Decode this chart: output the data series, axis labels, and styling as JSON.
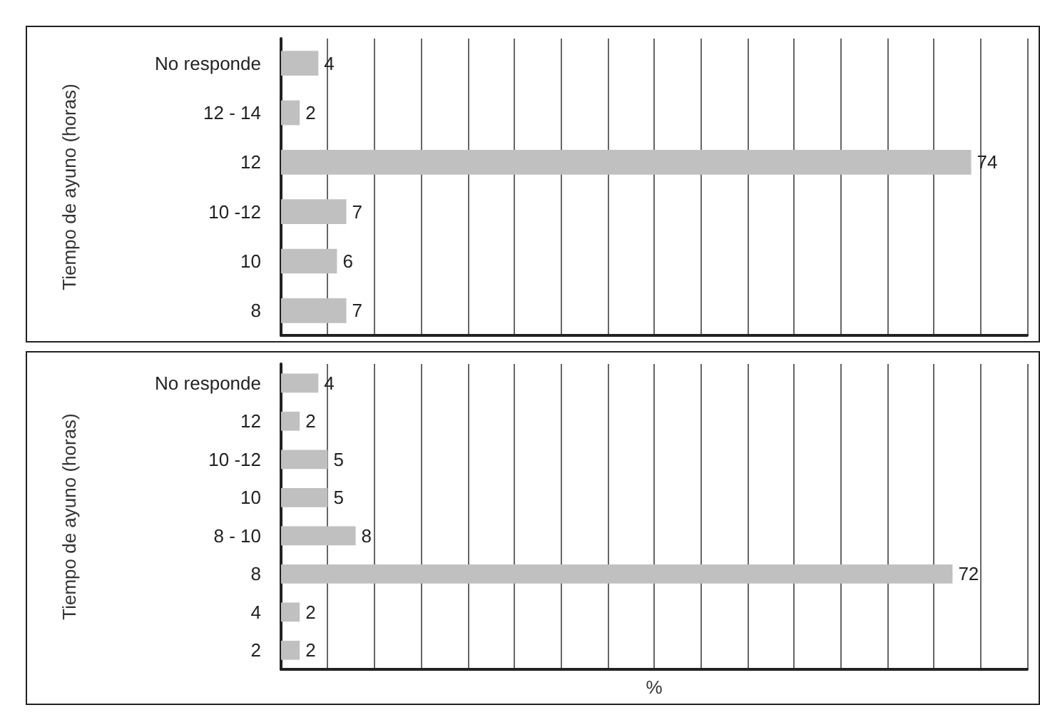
{
  "chart_data": [
    {
      "type": "bar",
      "orientation": "horizontal",
      "ylabel": "Tiempo de ayuno (horas)",
      "categories": [
        "No responde",
        "12 - 14",
        "12",
        "10 -12",
        "10",
        "8"
      ],
      "series": [
        {
          "color": "#c0c0c0",
          "values": [
            4,
            2,
            74,
            7,
            6,
            7
          ]
        }
      ],
      "xlim": [
        0,
        80
      ],
      "xticks": [
        {
          "value": 0,
          "label": null
        },
        {
          "value": 5,
          "label": null
        },
        {
          "value": 10,
          "label": null
        },
        {
          "value": 15,
          "label": null
        },
        {
          "value": 20,
          "label": null
        },
        {
          "value": 25,
          "label": null
        },
        {
          "value": 30,
          "label": null
        },
        {
          "value": 35,
          "label": null
        },
        {
          "value": 40,
          "label": null
        },
        {
          "value": 45,
          "label": null
        },
        {
          "value": 50,
          "label": null
        },
        {
          "value": 55,
          "label": null
        },
        {
          "value": 60,
          "label": null
        },
        {
          "value": 65,
          "label": null
        },
        {
          "value": 70,
          "label": null
        },
        {
          "value": 75,
          "label": null
        },
        {
          "value": 80,
          "label": null
        }
      ],
      "tick_labels": "y",
      "grid": "x",
      "data_labels": true
    },
    {
      "type": "bar",
      "orientation": "horizontal",
      "ylabel": "Tiempo de ayuno (horas)",
      "xlabel": "%",
      "categories": [
        "No responde",
        "12",
        "10 -12",
        "10",
        "8 - 10",
        "8",
        "4",
        "2"
      ],
      "series": [
        {
          "color": "#c0c0c0",
          "values": [
            4,
            2,
            5,
            5,
            8,
            72,
            2,
            2
          ]
        }
      ],
      "xlim": [
        0,
        80
      ],
      "xticks": [
        {
          "value": 0,
          "label": null
        },
        {
          "value": 5,
          "label": null
        },
        {
          "value": 10,
          "label": null
        },
        {
          "value": 15,
          "label": null
        },
        {
          "value": 20,
          "label": null
        },
        {
          "value": 25,
          "label": null
        },
        {
          "value": 30,
          "label": null
        },
        {
          "value": 35,
          "label": null
        },
        {
          "value": 40,
          "label": null
        },
        {
          "value": 45,
          "label": null
        },
        {
          "value": 50,
          "label": null
        },
        {
          "value": 55,
          "label": null
        },
        {
          "value": 60,
          "label": null
        },
        {
          "value": 65,
          "label": null
        },
        {
          "value": 70,
          "label": null
        },
        {
          "value": 75,
          "label": null
        },
        {
          "value": 80,
          "label": null
        }
      ],
      "tick_labels": "y",
      "grid": "x",
      "data_labels": true
    }
  ]
}
